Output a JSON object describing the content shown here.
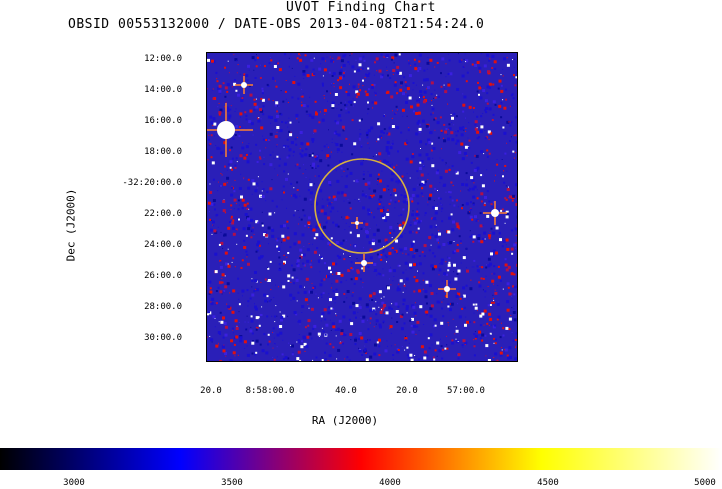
{
  "title": "UVOT Finding Chart",
  "subtitle": "OBSID 00553132000 / DATE-OBS 2013-04-08T21:54:24.0",
  "dec_axis": {
    "label": "Dec (J2000)",
    "ticks": [
      "12:00.0",
      "14:00.0",
      "16:00.0",
      "18:00.0",
      "-32:20:00.0",
      "22:00.0",
      "24:00.0",
      "26:00.0",
      "28:00.0",
      "30:00.0"
    ]
  },
  "ra_axis": {
    "label": "RA (J2000)",
    "ticks": [
      "20.0",
      "8:58:00.0",
      "40.0",
      "20.0",
      "57:00.0"
    ]
  },
  "colorbar": {
    "ticks": [
      "3000",
      "3500",
      "4000",
      "4500",
      "5000"
    ],
    "colors": [
      "#000000",
      "#0000ff",
      "#ff0000",
      "#ffff00",
      "#ffffff"
    ]
  },
  "image": {
    "background_color": "#2a1fb8",
    "target_circle_color": "#d8b040"
  }
}
